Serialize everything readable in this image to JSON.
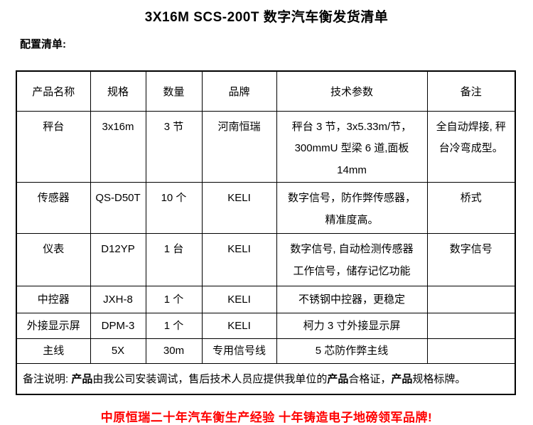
{
  "page": {
    "title": "3X16M SCS-200T 数字汽车衡发货清单",
    "subtitle": "配置清单:",
    "footer_slogan": "中原恒瑞二十年汽车衡生产经验 十年铸造电子地磅领军品牌!",
    "colors": {
      "text": "#000000",
      "slogan_red": "#ff0000",
      "table_border": "#000000",
      "background": "#ffffff"
    }
  },
  "table": {
    "headers": [
      "产品名称",
      "规格",
      "数量",
      "品牌",
      "技术参数",
      "备注"
    ],
    "rows": [
      {
        "name": "秤台",
        "spec": "3x16m",
        "qty": "3 节",
        "brand": "河南恒瑞",
        "tech": "秤台 3 节，3x5.33m/节，\n300mmU 型梁 6 道,面板 14mm",
        "note": "全自动焊接, 秤\n台冷弯成型。"
      },
      {
        "name": "传感器",
        "spec": "QS-D50T",
        "qty": "10 个",
        "brand": "KELI",
        "tech": "数字信号，防作弊传感器，\n精准度高。",
        "note": "桥式"
      },
      {
        "name": "仪表",
        "spec": "D12YP",
        "qty": "1 台",
        "brand": "KELI",
        "tech": "数字信号, 自动检测传感器\n工作信号，储存记忆功能",
        "note": "数字信号"
      },
      {
        "name": "中控器",
        "spec": "JXH-8",
        "qty": "1 个",
        "brand": "KELI",
        "tech": "不锈钢中控器，更稳定",
        "note": ""
      },
      {
        "name": "外接显示屏",
        "spec": "DPM-3",
        "qty": "1 个",
        "brand": "KELI",
        "tech": "柯力 3 寸外接显示屏",
        "note": ""
      },
      {
        "name": "主线",
        "spec": "5X",
        "qty": "30m",
        "brand": "专用信号线",
        "tech": "5 芯防作弊主线",
        "note": ""
      }
    ],
    "remark_segments": [
      {
        "text": "备注说明: ",
        "bold": false
      },
      {
        "text": "产品",
        "bold": true
      },
      {
        "text": "由我公司安装调试，售后技术人员应提供我单位的",
        "bold": false
      },
      {
        "text": "产品",
        "bold": true
      },
      {
        "text": "合格证，",
        "bold": false
      },
      {
        "text": "产品",
        "bold": true
      },
      {
        "text": "规格标牌。",
        "bold": false
      }
    ]
  }
}
